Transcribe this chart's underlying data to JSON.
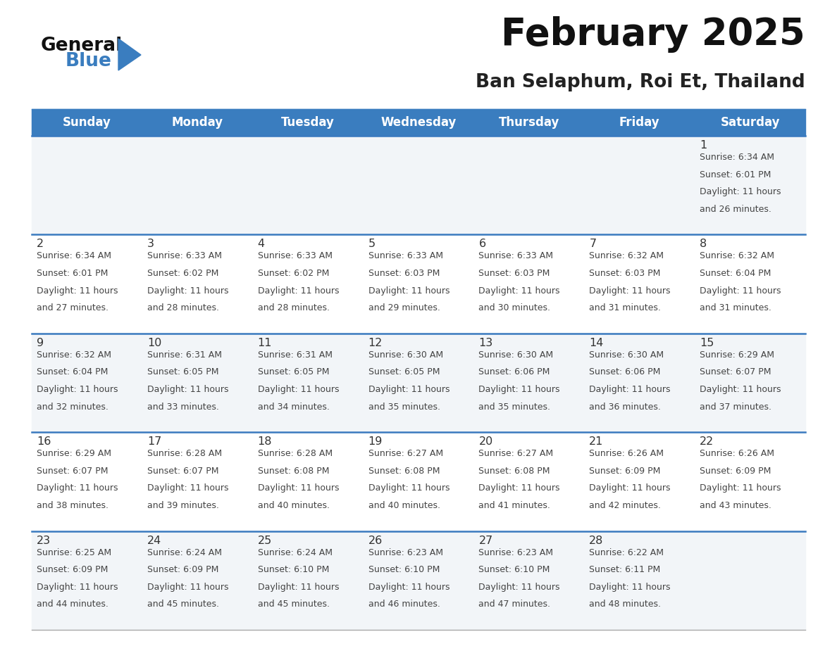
{
  "title": "February 2025",
  "subtitle": "Ban Selaphum, Roi Et, Thailand",
  "header_bg": "#3a7dbf",
  "header_text": "#ffffff",
  "day_names": [
    "Sunday",
    "Monday",
    "Tuesday",
    "Wednesday",
    "Thursday",
    "Friday",
    "Saturday"
  ],
  "row_bg_odd": "#f2f5f8",
  "row_bg_even": "#ffffff",
  "divider_color": "#3a7abf",
  "cell_text_color": "#444444",
  "day_num_color": "#333333",
  "title_color": "#111111",
  "subtitle_color": "#222222",
  "calendar_data": [
    [
      {
        "day": null,
        "sunrise": null,
        "sunset": null,
        "daylight": null
      },
      {
        "day": null,
        "sunrise": null,
        "sunset": null,
        "daylight": null
      },
      {
        "day": null,
        "sunrise": null,
        "sunset": null,
        "daylight": null
      },
      {
        "day": null,
        "sunrise": null,
        "sunset": null,
        "daylight": null
      },
      {
        "day": null,
        "sunrise": null,
        "sunset": null,
        "daylight": null
      },
      {
        "day": null,
        "sunrise": null,
        "sunset": null,
        "daylight": null
      },
      {
        "day": 1,
        "sunrise": "6:34 AM",
        "sunset": "6:01 PM",
        "daylight": "11 hours and 26 minutes."
      }
    ],
    [
      {
        "day": 2,
        "sunrise": "6:34 AM",
        "sunset": "6:01 PM",
        "daylight": "11 hours and 27 minutes."
      },
      {
        "day": 3,
        "sunrise": "6:33 AM",
        "sunset": "6:02 PM",
        "daylight": "11 hours and 28 minutes."
      },
      {
        "day": 4,
        "sunrise": "6:33 AM",
        "sunset": "6:02 PM",
        "daylight": "11 hours and 28 minutes."
      },
      {
        "day": 5,
        "sunrise": "6:33 AM",
        "sunset": "6:03 PM",
        "daylight": "11 hours and 29 minutes."
      },
      {
        "day": 6,
        "sunrise": "6:33 AM",
        "sunset": "6:03 PM",
        "daylight": "11 hours and 30 minutes."
      },
      {
        "day": 7,
        "sunrise": "6:32 AM",
        "sunset": "6:03 PM",
        "daylight": "11 hours and 31 minutes."
      },
      {
        "day": 8,
        "sunrise": "6:32 AM",
        "sunset": "6:04 PM",
        "daylight": "11 hours and 31 minutes."
      }
    ],
    [
      {
        "day": 9,
        "sunrise": "6:32 AM",
        "sunset": "6:04 PM",
        "daylight": "11 hours and 32 minutes."
      },
      {
        "day": 10,
        "sunrise": "6:31 AM",
        "sunset": "6:05 PM",
        "daylight": "11 hours and 33 minutes."
      },
      {
        "day": 11,
        "sunrise": "6:31 AM",
        "sunset": "6:05 PM",
        "daylight": "11 hours and 34 minutes."
      },
      {
        "day": 12,
        "sunrise": "6:30 AM",
        "sunset": "6:05 PM",
        "daylight": "11 hours and 35 minutes."
      },
      {
        "day": 13,
        "sunrise": "6:30 AM",
        "sunset": "6:06 PM",
        "daylight": "11 hours and 35 minutes."
      },
      {
        "day": 14,
        "sunrise": "6:30 AM",
        "sunset": "6:06 PM",
        "daylight": "11 hours and 36 minutes."
      },
      {
        "day": 15,
        "sunrise": "6:29 AM",
        "sunset": "6:07 PM",
        "daylight": "11 hours and 37 minutes."
      }
    ],
    [
      {
        "day": 16,
        "sunrise": "6:29 AM",
        "sunset": "6:07 PM",
        "daylight": "11 hours and 38 minutes."
      },
      {
        "day": 17,
        "sunrise": "6:28 AM",
        "sunset": "6:07 PM",
        "daylight": "11 hours and 39 minutes."
      },
      {
        "day": 18,
        "sunrise": "6:28 AM",
        "sunset": "6:08 PM",
        "daylight": "11 hours and 40 minutes."
      },
      {
        "day": 19,
        "sunrise": "6:27 AM",
        "sunset": "6:08 PM",
        "daylight": "11 hours and 40 minutes."
      },
      {
        "day": 20,
        "sunrise": "6:27 AM",
        "sunset": "6:08 PM",
        "daylight": "11 hours and 41 minutes."
      },
      {
        "day": 21,
        "sunrise": "6:26 AM",
        "sunset": "6:09 PM",
        "daylight": "11 hours and 42 minutes."
      },
      {
        "day": 22,
        "sunrise": "6:26 AM",
        "sunset": "6:09 PM",
        "daylight": "11 hours and 43 minutes."
      }
    ],
    [
      {
        "day": 23,
        "sunrise": "6:25 AM",
        "sunset": "6:09 PM",
        "daylight": "11 hours and 44 minutes."
      },
      {
        "day": 24,
        "sunrise": "6:24 AM",
        "sunset": "6:09 PM",
        "daylight": "11 hours and 45 minutes."
      },
      {
        "day": 25,
        "sunrise": "6:24 AM",
        "sunset": "6:10 PM",
        "daylight": "11 hours and 45 minutes."
      },
      {
        "day": 26,
        "sunrise": "6:23 AM",
        "sunset": "6:10 PM",
        "daylight": "11 hours and 46 minutes."
      },
      {
        "day": 27,
        "sunrise": "6:23 AM",
        "sunset": "6:10 PM",
        "daylight": "11 hours and 47 minutes."
      },
      {
        "day": 28,
        "sunrise": "6:22 AM",
        "sunset": "6:11 PM",
        "daylight": "11 hours and 48 minutes."
      },
      {
        "day": null,
        "sunrise": null,
        "sunset": null,
        "daylight": null
      }
    ]
  ],
  "logo_text_general": "General",
  "logo_text_blue": "Blue",
  "logo_color_general": "#111111",
  "logo_color_blue": "#3a7dbf",
  "logo_triangle_color": "#3a7dbf"
}
